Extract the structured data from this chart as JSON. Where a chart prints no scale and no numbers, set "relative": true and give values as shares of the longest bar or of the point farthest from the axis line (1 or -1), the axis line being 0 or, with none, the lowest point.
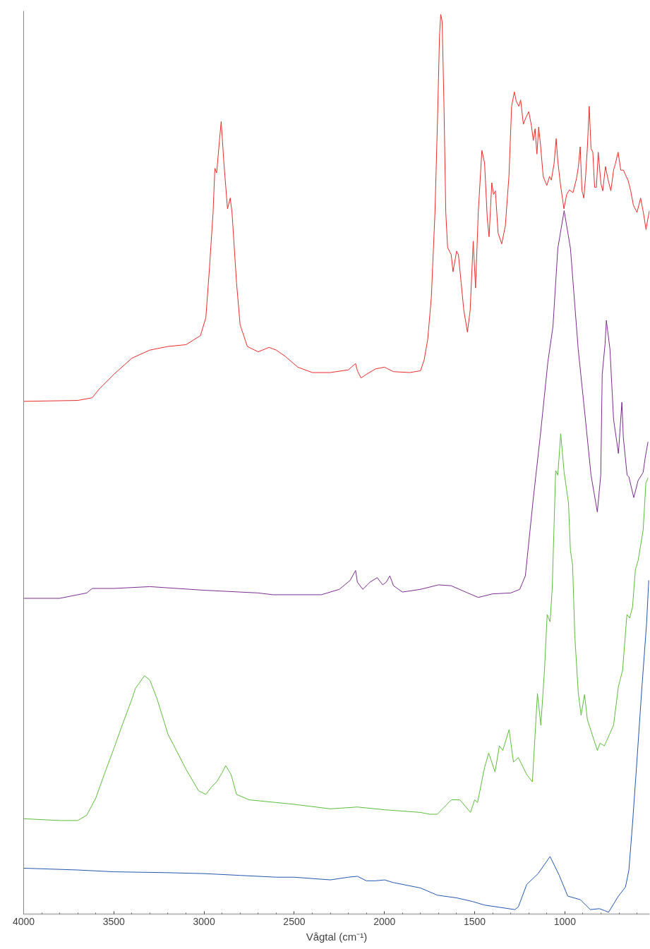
{
  "chart_data": {
    "type": "line",
    "xlabel": "Vågtal (cm⁻¹)",
    "relative": true,
    "grid": false,
    "xlim": [
      4000,
      530
    ],
    "xticks": [
      4000,
      {
        "value": 3900,
        "label": null
      },
      {
        "value": 3800,
        "label": null
      },
      {
        "value": 3700,
        "label": null
      },
      {
        "value": 3600,
        "label": null
      },
      3500,
      {
        "value": 3400,
        "label": null
      },
      {
        "value": 3300,
        "label": null
      },
      {
        "value": 3200,
        "label": null
      },
      {
        "value": 3100,
        "label": null
      },
      3000,
      {
        "value": 2900,
        "label": null
      },
      {
        "value": 2800,
        "label": null
      },
      {
        "value": 2700,
        "label": null
      },
      {
        "value": 2600,
        "label": null
      },
      2500,
      {
        "value": 2400,
        "label": null
      },
      {
        "value": 2300,
        "label": null
      },
      {
        "value": 2200,
        "label": null
      },
      {
        "value": 2100,
        "label": null
      },
      2000,
      {
        "value": 1900,
        "label": null
      },
      {
        "value": 1800,
        "label": null
      },
      {
        "value": 1700,
        "label": null
      },
      {
        "value": 1600,
        "label": null
      },
      1500,
      {
        "value": 1400,
        "label": null
      },
      {
        "value": 1300,
        "label": null
      },
      {
        "value": 1200,
        "label": null
      },
      {
        "value": 1100,
        "label": null
      },
      1000,
      {
        "value": 900,
        "label": null
      },
      {
        "value": 800,
        "label": null
      },
      {
        "value": 700,
        "label": null
      },
      {
        "value": 600,
        "label": null
      }
    ],
    "series": [
      {
        "color": "#ec2a2a",
        "x": [
          4000,
          3700,
          3620,
          3580,
          3500,
          3400,
          3300,
          3200,
          3100,
          3060,
          3020,
          2990,
          2970,
          2950,
          2940,
          2930,
          2915,
          2905,
          2890,
          2870,
          2855,
          2845,
          2820,
          2800,
          2760,
          2700,
          2640,
          2600,
          2550,
          2480,
          2400,
          2300,
          2200,
          2160,
          2150,
          2130,
          2100,
          2050,
          2000,
          1950,
          1860,
          1800,
          1780,
          1760,
          1740,
          1720,
          1705,
          1695,
          1688,
          1680,
          1670,
          1660,
          1650,
          1630,
          1620,
          1600,
          1590,
          1575,
          1560,
          1540,
          1525,
          1508,
          1495,
          1480,
          1460,
          1445,
          1430,
          1420,
          1405,
          1395,
          1385,
          1370,
          1350,
          1330,
          1310,
          1295,
          1280,
          1270,
          1255,
          1245,
          1230,
          1215,
          1200,
          1185,
          1175,
          1165,
          1155,
          1145,
          1135,
          1120,
          1100,
          1085,
          1075,
          1060,
          1048,
          1040,
          1025,
          1005,
          990,
          975,
          955,
          935,
          925,
          915,
          905,
          895,
          885,
          875,
          865,
          855,
          845,
          835,
          825,
          815,
          800,
          790,
          775,
          760,
          745,
          730,
          720,
          705,
          690,
          675,
          660,
          650,
          635,
          620,
          600,
          580,
          565,
          550,
          540,
          531
        ],
        "values": [
          0.57,
          0.571,
          0.574,
          0.584,
          0.6,
          0.618,
          0.627,
          0.631,
          0.633,
          0.638,
          0.643,
          0.663,
          0.718,
          0.78,
          0.829,
          0.824,
          0.859,
          0.881,
          0.835,
          0.784,
          0.796,
          0.78,
          0.702,
          0.655,
          0.631,
          0.625,
          0.63,
          0.627,
          0.62,
          0.608,
          0.602,
          0.602,
          0.605,
          0.612,
          0.604,
          0.596,
          0.6,
          0.606,
          0.608,
          0.603,
          0.602,
          0.604,
          0.616,
          0.639,
          0.686,
          0.78,
          0.89,
          0.976,
          1.0,
          0.992,
          0.898,
          0.78,
          0.741,
          0.733,
          0.714,
          0.737,
          0.733,
          0.702,
          0.671,
          0.647,
          0.671,
          0.748,
          0.696,
          0.78,
          0.849,
          0.835,
          0.773,
          0.753,
          0.813,
          0.8,
          0.804,
          0.757,
          0.745,
          0.765,
          0.82,
          0.898,
          0.914,
          0.904,
          0.898,
          0.905,
          0.878,
          0.886,
          0.892,
          0.876,
          0.86,
          0.873,
          0.845,
          0.875,
          0.855,
          0.82,
          0.81,
          0.82,
          0.816,
          0.834,
          0.862,
          0.839,
          0.812,
          0.784,
          0.8,
          0.805,
          0.802,
          0.818,
          0.831,
          0.853,
          0.804,
          0.796,
          0.82,
          0.853,
          0.898,
          0.851,
          0.847,
          0.808,
          0.808,
          0.847,
          0.812,
          0.804,
          0.831,
          0.816,
          0.804,
          0.827,
          0.834,
          0.847,
          0.827,
          0.827,
          0.82,
          0.816,
          0.804,
          0.788,
          0.78,
          0.796,
          0.78,
          0.761,
          0.773,
          0.782
        ]
      },
      {
        "color": "#7b2c8e",
        "x": [
          4000,
          3800,
          3700,
          3650,
          3620,
          3500,
          3300,
          3000,
          2700,
          2620,
          2500,
          2350,
          2250,
          2190,
          2160,
          2150,
          2120,
          2080,
          2040,
          2010,
          1990,
          1970,
          1950,
          1900,
          1800,
          1700,
          1630,
          1550,
          1480,
          1400,
          1300,
          1250,
          1219,
          1176,
          1156,
          1137,
          1094,
          1066,
          1039,
          1004,
          969,
          926,
          883,
          855,
          820,
          801,
          793,
          777,
          770,
          750,
          730,
          703,
          684,
          676,
          655,
          645,
          618,
          594,
          566,
          555,
          539
        ],
        "values": [
          0.351,
          0.351,
          0.355,
          0.357,
          0.362,
          0.362,
          0.364,
          0.36,
          0.357,
          0.355,
          0.355,
          0.355,
          0.361,
          0.371,
          0.382,
          0.369,
          0.361,
          0.369,
          0.374,
          0.366,
          0.369,
          0.376,
          0.365,
          0.358,
          0.361,
          0.366,
          0.365,
          0.358,
          0.352,
          0.356,
          0.357,
          0.361,
          0.376,
          0.46,
          0.496,
          0.53,
          0.614,
          0.653,
          0.74,
          0.782,
          0.74,
          0.628,
          0.544,
          0.488,
          0.447,
          0.488,
          0.6,
          0.634,
          0.66,
          0.628,
          0.55,
          0.512,
          0.569,
          0.53,
          0.488,
          0.486,
          0.463,
          0.482,
          0.491,
          0.507,
          0.525
        ]
      },
      {
        "color": "#5cbd3a",
        "x": [
          4000,
          3800,
          3700,
          3650,
          3600,
          3550,
          3500,
          3450,
          3400,
          3380,
          3330,
          3300,
          3260,
          3200,
          3100,
          3030,
          2990,
          2960,
          2930,
          2900,
          2880,
          2850,
          2820,
          2750,
          2600,
          2500,
          2300,
          2150,
          2000,
          1800,
          1750,
          1707,
          1629,
          1582,
          1523,
          1500,
          1484,
          1445,
          1422,
          1387,
          1363,
          1344,
          1309,
          1285,
          1258,
          1211,
          1180,
          1152,
          1133,
          1113,
          1098,
          1082,
          1070,
          1051,
          1039,
          1023,
          1004,
          980,
          969,
          957,
          945,
          926,
          910,
          891,
          875,
          820,
          805,
          781,
          730,
          703,
          680,
          656,
          641,
          625,
          609,
          594,
          566,
          551,
          539
        ],
        "values": [
          0.106,
          0.104,
          0.104,
          0.11,
          0.129,
          0.157,
          0.184,
          0.212,
          0.239,
          0.251,
          0.265,
          0.26,
          0.239,
          0.2,
          0.161,
          0.137,
          0.133,
          0.141,
          0.147,
          0.157,
          0.165,
          0.155,
          0.133,
          0.127,
          0.124,
          0.122,
          0.117,
          0.119,
          0.116,
          0.113,
          0.111,
          0.111,
          0.127,
          0.127,
          0.113,
          0.127,
          0.124,
          0.163,
          0.179,
          0.158,
          0.187,
          0.182,
          0.205,
          0.169,
          0.174,
          0.155,
          0.147,
          0.245,
          0.21,
          0.271,
          0.333,
          0.325,
          0.362,
          0.493,
          0.488,
          0.534,
          0.491,
          0.457,
          0.404,
          0.388,
          0.31,
          0.247,
          0.221,
          0.244,
          0.216,
          0.182,
          0.19,
          0.187,
          0.21,
          0.253,
          0.271,
          0.333,
          0.329,
          0.341,
          0.383,
          0.393,
          0.427,
          0.479,
          0.485
        ]
      },
      {
        "color": "#2456b0",
        "x": [
          4000,
          3700,
          3500,
          3200,
          3000,
          2800,
          2600,
          2500,
          2300,
          2200,
          2150,
          2100,
          2050,
          2000,
          1950,
          1800,
          1707,
          1600,
          1512,
          1445,
          1277,
          1258,
          1211,
          1148,
          1082,
          1031,
          984,
          914,
          859,
          809,
          781,
          758,
          703,
          664,
          645,
          625,
          602,
          574,
          547,
          535
        ],
        "values": [
          0.051,
          0.049,
          0.047,
          0.046,
          0.045,
          0.043,
          0.041,
          0.041,
          0.038,
          0.041,
          0.042,
          0.037,
          0.037,
          0.038,
          0.035,
          0.029,
          0.021,
          0.018,
          0.014,
          0.01,
          0.005,
          0.008,
          0.033,
          0.045,
          0.064,
          0.043,
          0.02,
          0.016,
          0.005,
          0.006,
          0.004,
          0.002,
          0.02,
          0.03,
          0.049,
          0.1,
          0.166,
          0.249,
          0.323,
          0.371
        ]
      }
    ]
  }
}
